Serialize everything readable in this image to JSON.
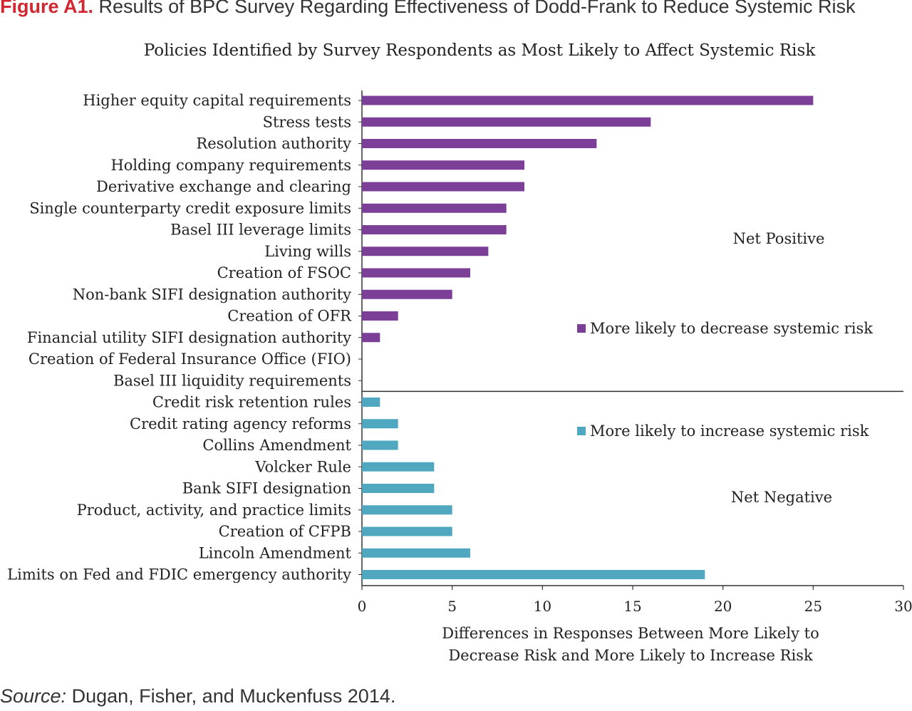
{
  "figure": {
    "label": "Figure A1.",
    "caption": "Results of BPC Survey Regarding Effectiveness of Dodd-Frank to Reduce Systemic Risk"
  },
  "source": {
    "label": "Source:",
    "text": "Dugan, Fisher, and Muckenfuss 2014."
  },
  "colors": {
    "decrease": "#7b3f98",
    "increase": "#4fa8bf"
  },
  "chart_data": {
    "type": "bar",
    "orientation": "horizontal",
    "title": "Policies Identified by Survey Respondents as Most Likely to Affect Systemic Risk",
    "xlabel": [
      "Differences in Responses Between More Likely to",
      "Decrease Risk and More Likely to Increase Risk"
    ],
    "xlim": [
      0,
      30
    ],
    "xticks": [
      0,
      5,
      10,
      15,
      20,
      25,
      30
    ],
    "categories": [
      "Higher equity capital requirements",
      "Stress tests",
      "Resolution authority",
      "Holding company requirements",
      "Derivative exchange and clearing",
      "Single counterparty credit exposure limits",
      "Basel III leverage limits",
      "Living wills",
      "Creation of FSOC",
      "Non-bank SIFI designation authority",
      "Creation of OFR",
      "Financial utility SIFI designation authority",
      "Creation of Federal Insurance Office (FIO)",
      "Basel III liquidity requirements",
      "Credit risk retention rules",
      "Credit rating agency reforms",
      "Collins Amendment",
      "Volcker Rule",
      "Bank SIFI designation",
      "Product, activity, and practice limits",
      "Creation of CFPB",
      "Lincoln Amendment",
      "Limits on Fed and FDIC emergency authority"
    ],
    "series": [
      {
        "name": "More likely to decrease systemic risk",
        "values": [
          25,
          16,
          13,
          9,
          9,
          8,
          8,
          7,
          6,
          5,
          2,
          1,
          0,
          0,
          null,
          null,
          null,
          null,
          null,
          null,
          null,
          null,
          null
        ]
      },
      {
        "name": "More likely to increase systemic risk",
        "values": [
          null,
          null,
          null,
          null,
          null,
          null,
          null,
          null,
          null,
          null,
          null,
          null,
          null,
          null,
          1,
          2,
          2,
          4,
          4,
          5,
          5,
          6,
          19
        ]
      }
    ],
    "annotations": [
      "Net Positive",
      "Net Negative"
    ],
    "divider_after_index": 13
  }
}
